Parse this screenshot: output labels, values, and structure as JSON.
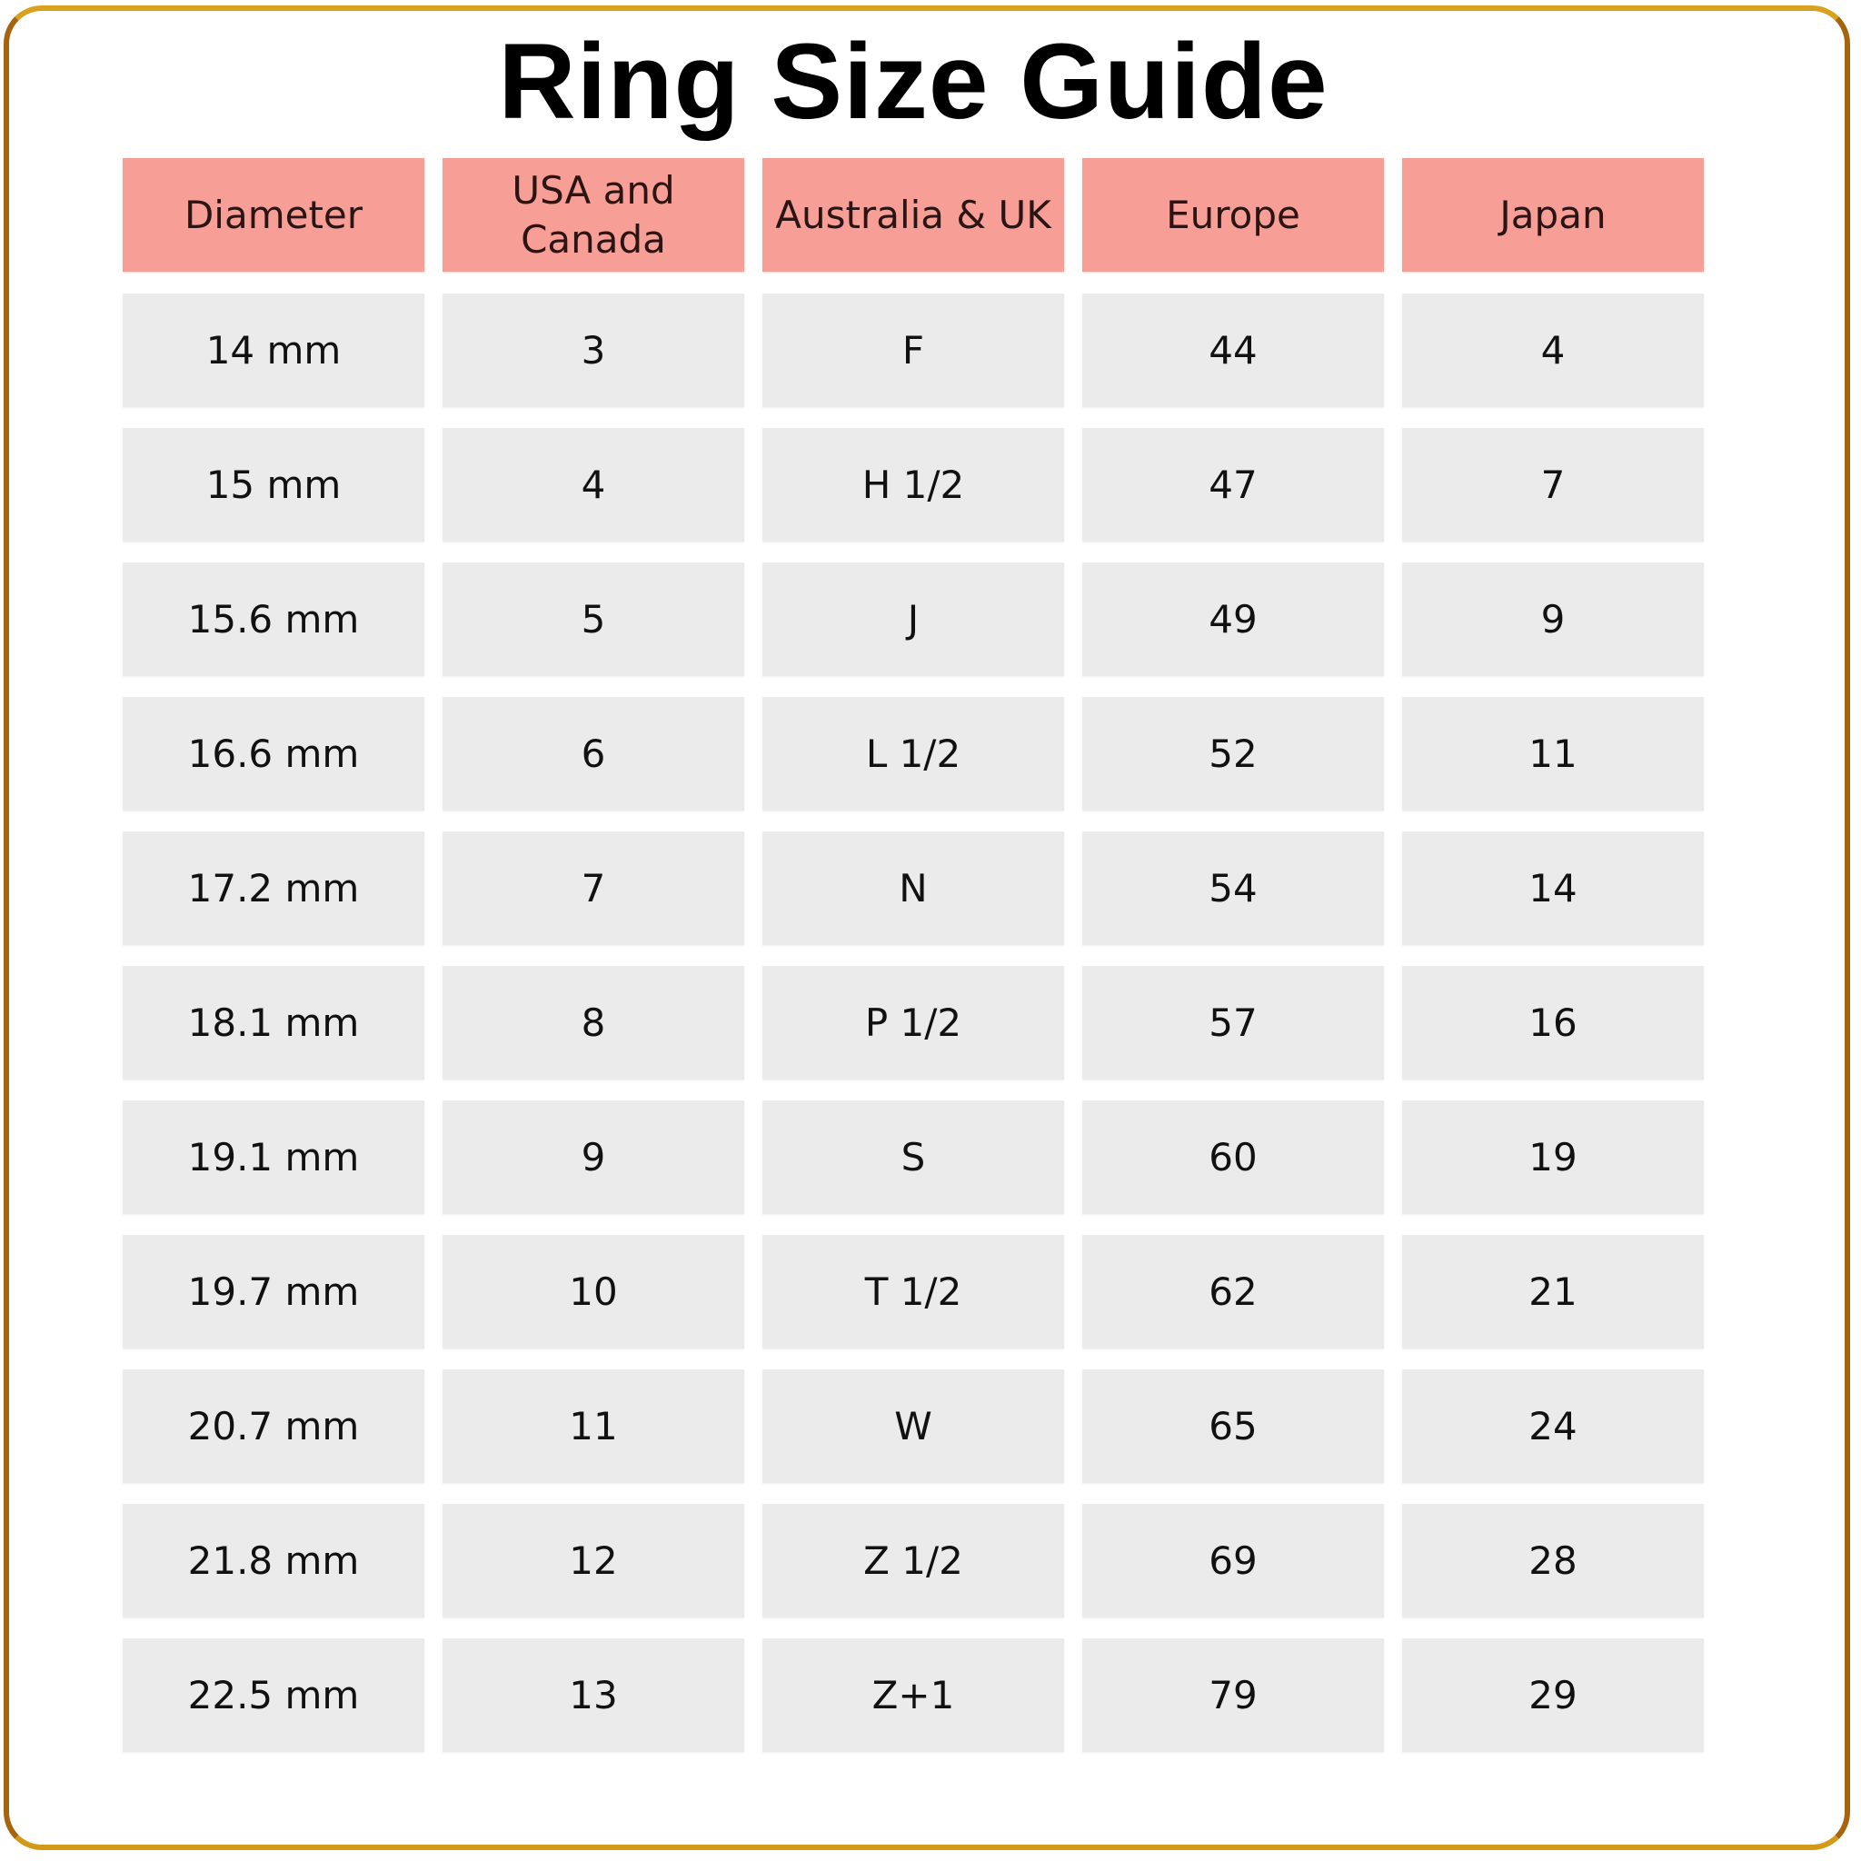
{
  "title": "Ring Size Guide",
  "colors": {
    "header_bg": "#f79e96",
    "cell_bg": "#ebebeb",
    "frame": "#c48a1c"
  },
  "table": {
    "headers": [
      "Diameter",
      "USA and Canada",
      "Australia & UK",
      "Europe",
      "Japan"
    ],
    "rows": [
      [
        "14 mm",
        "3",
        "F",
        "44",
        "4"
      ],
      [
        "15 mm",
        "4",
        "H 1/2",
        "47",
        "7"
      ],
      [
        "15.6 mm",
        "5",
        "J",
        "49",
        "9"
      ],
      [
        "16.6 mm",
        "6",
        "L 1/2",
        "52",
        "11"
      ],
      [
        "17.2 mm",
        "7",
        "N",
        "54",
        "14"
      ],
      [
        "18.1 mm",
        "8",
        "P 1/2",
        "57",
        "16"
      ],
      [
        "19.1 mm",
        "9",
        "S",
        "60",
        "19"
      ],
      [
        "19.7 mm",
        "10",
        "T 1/2",
        "62",
        "21"
      ],
      [
        "20.7 mm",
        "11",
        "W",
        "65",
        "24"
      ],
      [
        "21.8 mm",
        "12",
        "Z 1/2",
        "69",
        "28"
      ],
      [
        "22.5 mm",
        "13",
        "Z+1",
        "79",
        "29"
      ]
    ]
  }
}
